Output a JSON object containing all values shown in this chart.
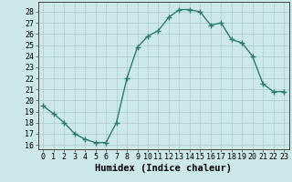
{
  "x": [
    0,
    1,
    2,
    3,
    4,
    5,
    6,
    7,
    8,
    9,
    10,
    11,
    12,
    13,
    14,
    15,
    16,
    17,
    18,
    19,
    20,
    21,
    22,
    23
  ],
  "y": [
    19.5,
    18.8,
    18.0,
    17.0,
    16.5,
    16.2,
    16.2,
    18.0,
    22.0,
    24.8,
    25.8,
    26.3,
    27.5,
    28.2,
    28.2,
    28.0,
    26.8,
    27.0,
    25.5,
    25.2,
    24.0,
    21.5,
    20.8,
    20.8
  ],
  "line_color": "#2a7d6e",
  "marker": "+",
  "marker_size": 4,
  "marker_lw": 1.0,
  "line_width": 1.0,
  "bg_color": "#cce8e8",
  "grid_color": "#aacccc",
  "xlabel": "Humidex (Indice chaleur)",
  "ylabel_ticks": [
    16,
    17,
    18,
    19,
    20,
    21,
    22,
    23,
    24,
    25,
    26,
    27,
    28
  ],
  "xlim": [
    -0.5,
    23.5
  ],
  "ylim": [
    15.6,
    28.9
  ],
  "xticks": [
    0,
    1,
    2,
    3,
    4,
    5,
    6,
    7,
    8,
    9,
    10,
    11,
    12,
    13,
    14,
    15,
    16,
    17,
    18,
    19,
    20,
    21,
    22,
    23
  ],
  "xlabel_fontsize": 7.5,
  "tick_fontsize": 6.0
}
